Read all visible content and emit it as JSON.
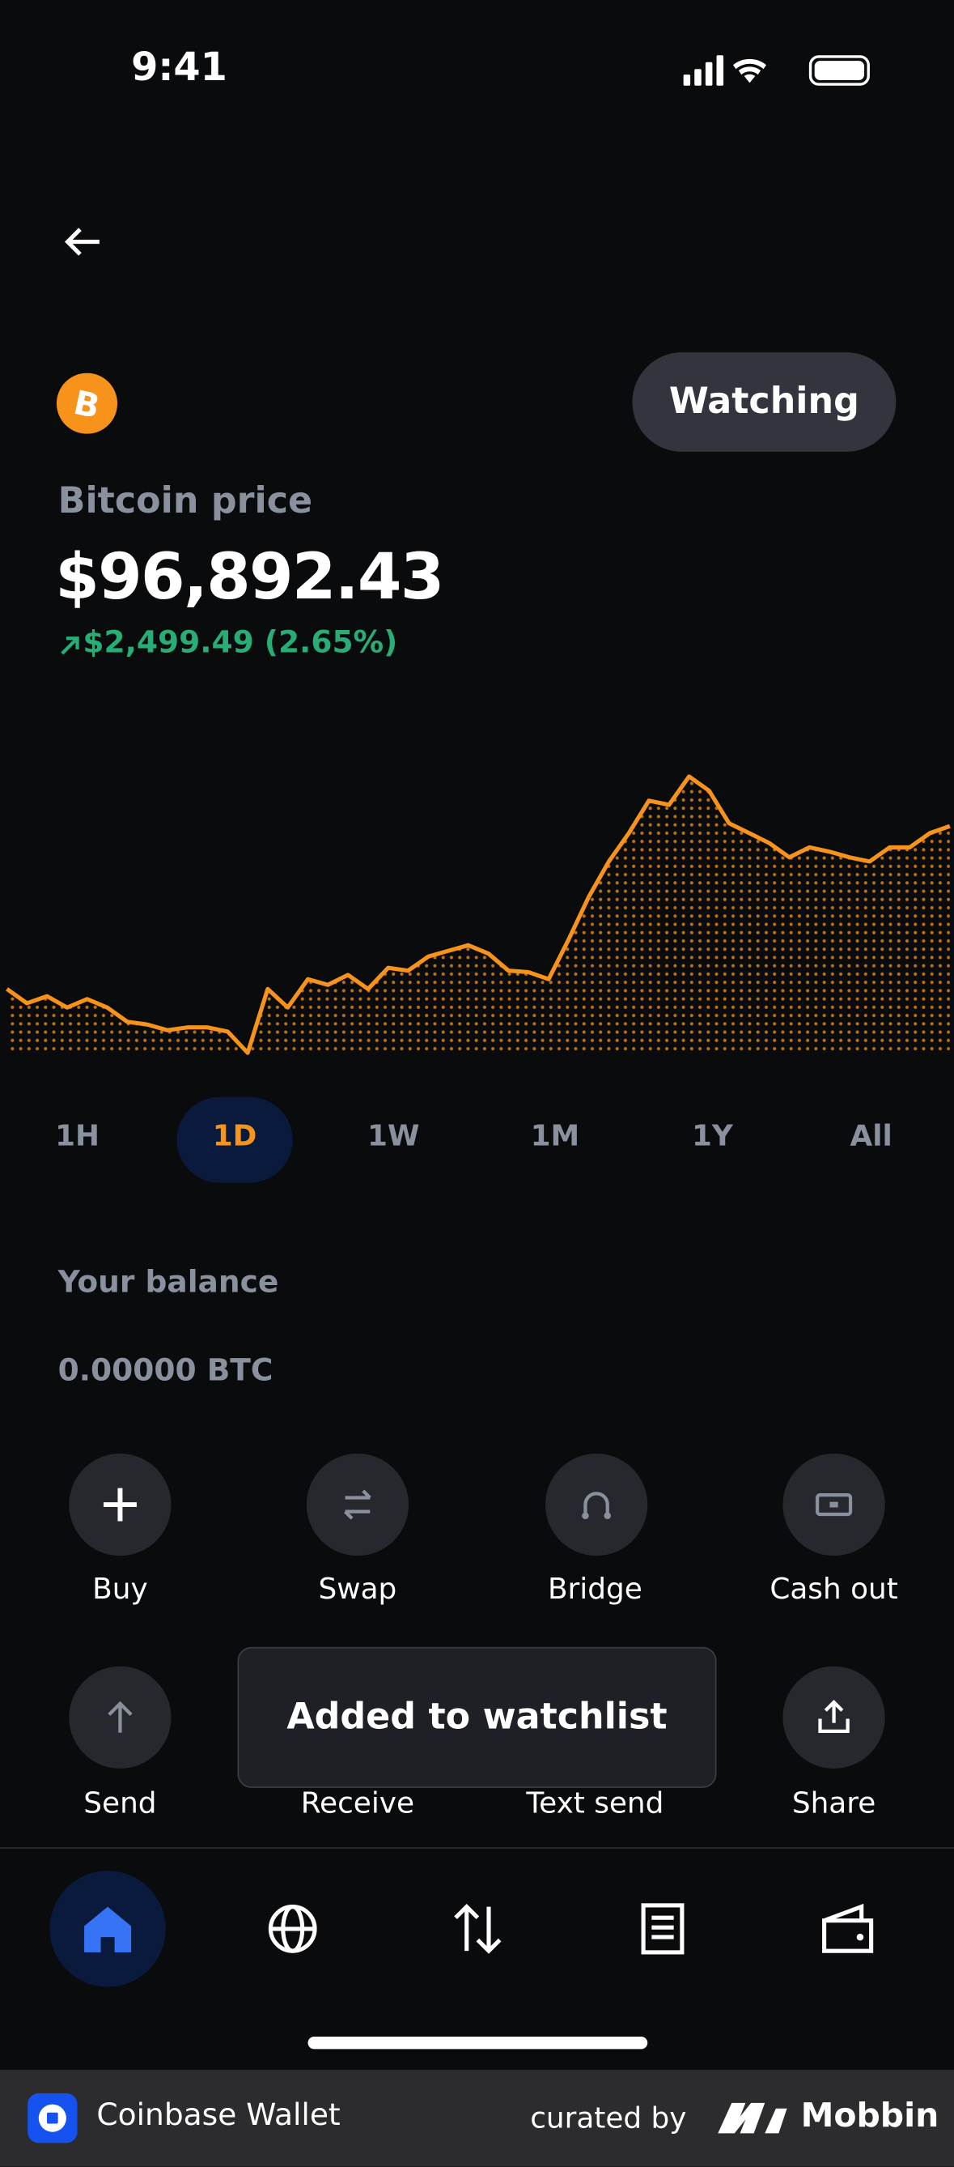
{
  "status_bar": {
    "time": "9:41"
  },
  "asset": {
    "title": "Bitcoin price",
    "price": "$96,892.43",
    "change": "$2,499.49 (2.65%)",
    "watch_button": "Watching"
  },
  "price_chart": {
    "type": "area",
    "color": "#f7931a",
    "values": [
      94457,
      94245,
      94351,
      94181,
      94308,
      94181,
      93969,
      93927,
      93842,
      93884,
      93884,
      93821,
      93503,
      94457,
      94181,
      94605,
      94520,
      94669,
      94457,
      94775,
      94732,
      94944,
      95029,
      95114,
      94987,
      94732,
      94711,
      94605,
      95199,
      95835,
      96365,
      96789,
      97276,
      97213,
      97637,
      97425,
      96937,
      96789,
      96640,
      96428,
      96577,
      96513,
      96428,
      96365,
      96577,
      96577,
      96789,
      96895
    ]
  },
  "timeframes": [
    "1H",
    "1D",
    "1W",
    "1M",
    "1Y",
    "All"
  ],
  "balance": {
    "label": "Your balance",
    "amount": "0.00000 BTC"
  },
  "actions": [
    "Buy",
    "Swap",
    "Bridge",
    "Cash out",
    "Send",
    "Receive",
    "Text send",
    "Share"
  ],
  "toast": "Added to watchlist",
  "footer": {
    "app": "Coinbase Wallet",
    "curated": "curated by",
    "brand": "Mobbin"
  }
}
